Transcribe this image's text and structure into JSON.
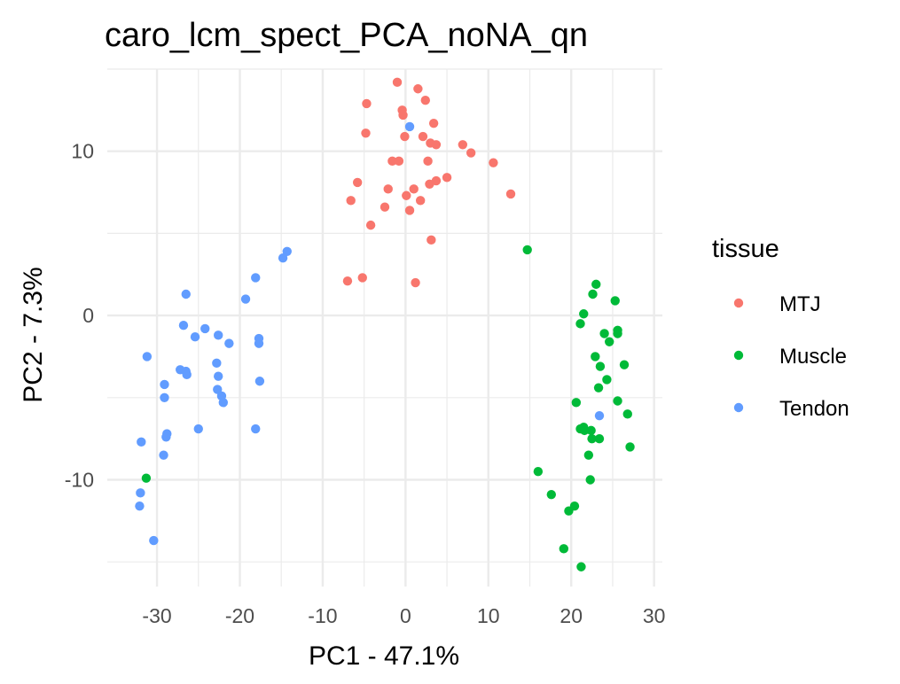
{
  "chart_data": {
    "type": "scatter",
    "title": "caro_lcm_spect_PCA_noNA_qn",
    "xlabel": "PC1 - 47.1%",
    "ylabel": "PC2 - 7.3%",
    "xlim": [
      -36,
      31
    ],
    "ylim": [
      -16.5,
      15
    ],
    "x_ticks": [
      -30,
      -20,
      -10,
      0,
      10,
      20,
      30
    ],
    "x_tick_labels": [
      "-30",
      "-20",
      "-10",
      "0",
      "10",
      "20",
      "30"
    ],
    "y_ticks": [
      -10,
      0,
      10
    ],
    "y_tick_labels": [
      "-10",
      "0",
      "10"
    ],
    "grid": true,
    "legend": {
      "title": "tissue",
      "position": "right"
    },
    "series": [
      {
        "name": "MTJ",
        "color": "#F8766D",
        "points": [
          [
            -1,
            14.2
          ],
          [
            1.5,
            13.8
          ],
          [
            -4.7,
            12.9
          ],
          [
            -0.4,
            12.5
          ],
          [
            2.4,
            13.1
          ],
          [
            -0.3,
            12.2
          ],
          [
            -4.8,
            11.1
          ],
          [
            -0.1,
            10.9
          ],
          [
            2.1,
            10.9
          ],
          [
            3.4,
            11.7
          ],
          [
            3.0,
            10.5
          ],
          [
            3.7,
            10.4
          ],
          [
            6.9,
            10.4
          ],
          [
            7.9,
            9.9
          ],
          [
            2.7,
            9.4
          ],
          [
            -1.6,
            9.4
          ],
          [
            -0.8,
            9.4
          ],
          [
            10.6,
            9.3
          ],
          [
            -5.8,
            8.1
          ],
          [
            5.0,
            8.4
          ],
          [
            3.7,
            8.2
          ],
          [
            2.9,
            8.0
          ],
          [
            -2.1,
            7.7
          ],
          [
            1.0,
            7.7
          ],
          [
            12.7,
            7.4
          ],
          [
            -6.6,
            7.0
          ],
          [
            0.1,
            7.3
          ],
          [
            1.8,
            7.0
          ],
          [
            -2.5,
            6.6
          ],
          [
            0.5,
            6.4
          ],
          [
            -4.2,
            5.5
          ],
          [
            3.1,
            4.6
          ],
          [
            -7.0,
            2.1
          ],
          [
            -5.2,
            2.3
          ],
          [
            1.2,
            2.0
          ]
        ]
      },
      {
        "name": "Muscle",
        "color": "#00BA38",
        "points": [
          [
            14.7,
            4.0
          ],
          [
            23.0,
            1.9
          ],
          [
            22.6,
            1.3
          ],
          [
            25.3,
            0.9
          ],
          [
            21.5,
            0.1
          ],
          [
            21.1,
            -0.5
          ],
          [
            25.6,
            -0.9
          ],
          [
            24.0,
            -1.1
          ],
          [
            25.6,
            -1.1
          ],
          [
            24.6,
            -1.6
          ],
          [
            22.9,
            -2.5
          ],
          [
            26.4,
            -3.0
          ],
          [
            23.5,
            -3.1
          ],
          [
            24.3,
            -3.9
          ],
          [
            23.3,
            -4.4
          ],
          [
            20.6,
            -5.3
          ],
          [
            25.6,
            -5.2
          ],
          [
            26.8,
            -6.0
          ],
          [
            21.1,
            -6.9
          ],
          [
            21.6,
            -7.0
          ],
          [
            22.4,
            -7.0
          ],
          [
            22.5,
            -7.5
          ],
          [
            23.4,
            -7.5
          ],
          [
            21.5,
            -6.8
          ],
          [
            27.1,
            -8.0
          ],
          [
            22.1,
            -8.5
          ],
          [
            16.0,
            -9.5
          ],
          [
            22.3,
            -10.0
          ],
          [
            17.6,
            -10.9
          ],
          [
            20.4,
            -11.6
          ],
          [
            19.7,
            -11.9
          ],
          [
            19.1,
            -14.2
          ],
          [
            21.2,
            -15.3
          ],
          [
            -31.3,
            -9.9
          ]
        ]
      },
      {
        "name": "Tendon",
        "color": "#619CFF",
        "points": [
          [
            -14.3,
            3.9
          ],
          [
            -14.8,
            3.5
          ],
          [
            -18.1,
            2.3
          ],
          [
            -19.3,
            1.0
          ],
          [
            -26.5,
            1.3
          ],
          [
            -26.8,
            -0.6
          ],
          [
            -24.2,
            -0.8
          ],
          [
            -22.6,
            -1.2
          ],
          [
            -25.4,
            -1.3
          ],
          [
            -17.7,
            -1.4
          ],
          [
            -21.3,
            -1.7
          ],
          [
            -17.7,
            -1.7
          ],
          [
            -31.2,
            -2.5
          ],
          [
            -22.8,
            -2.9
          ],
          [
            -27.2,
            -3.3
          ],
          [
            -26.5,
            -3.4
          ],
          [
            -26.4,
            -3.6
          ],
          [
            -22.6,
            -3.7
          ],
          [
            -29.1,
            -4.2
          ],
          [
            -17.6,
            -4.0
          ],
          [
            -22.7,
            -4.5
          ],
          [
            -22.2,
            -4.9
          ],
          [
            -29.1,
            -5.0
          ],
          [
            -22.0,
            -5.3
          ],
          [
            -18.1,
            -6.9
          ],
          [
            -25.0,
            -6.9
          ],
          [
            -28.8,
            -7.2
          ],
          [
            -28.9,
            -7.4
          ],
          [
            -31.9,
            -7.7
          ],
          [
            -29.2,
            -8.5
          ],
          [
            -32.0,
            -10.8
          ],
          [
            -32.1,
            -11.6
          ],
          [
            -30.4,
            -13.7
          ],
          [
            0.5,
            11.5
          ],
          [
            23.4,
            -6.1
          ]
        ]
      }
    ]
  }
}
